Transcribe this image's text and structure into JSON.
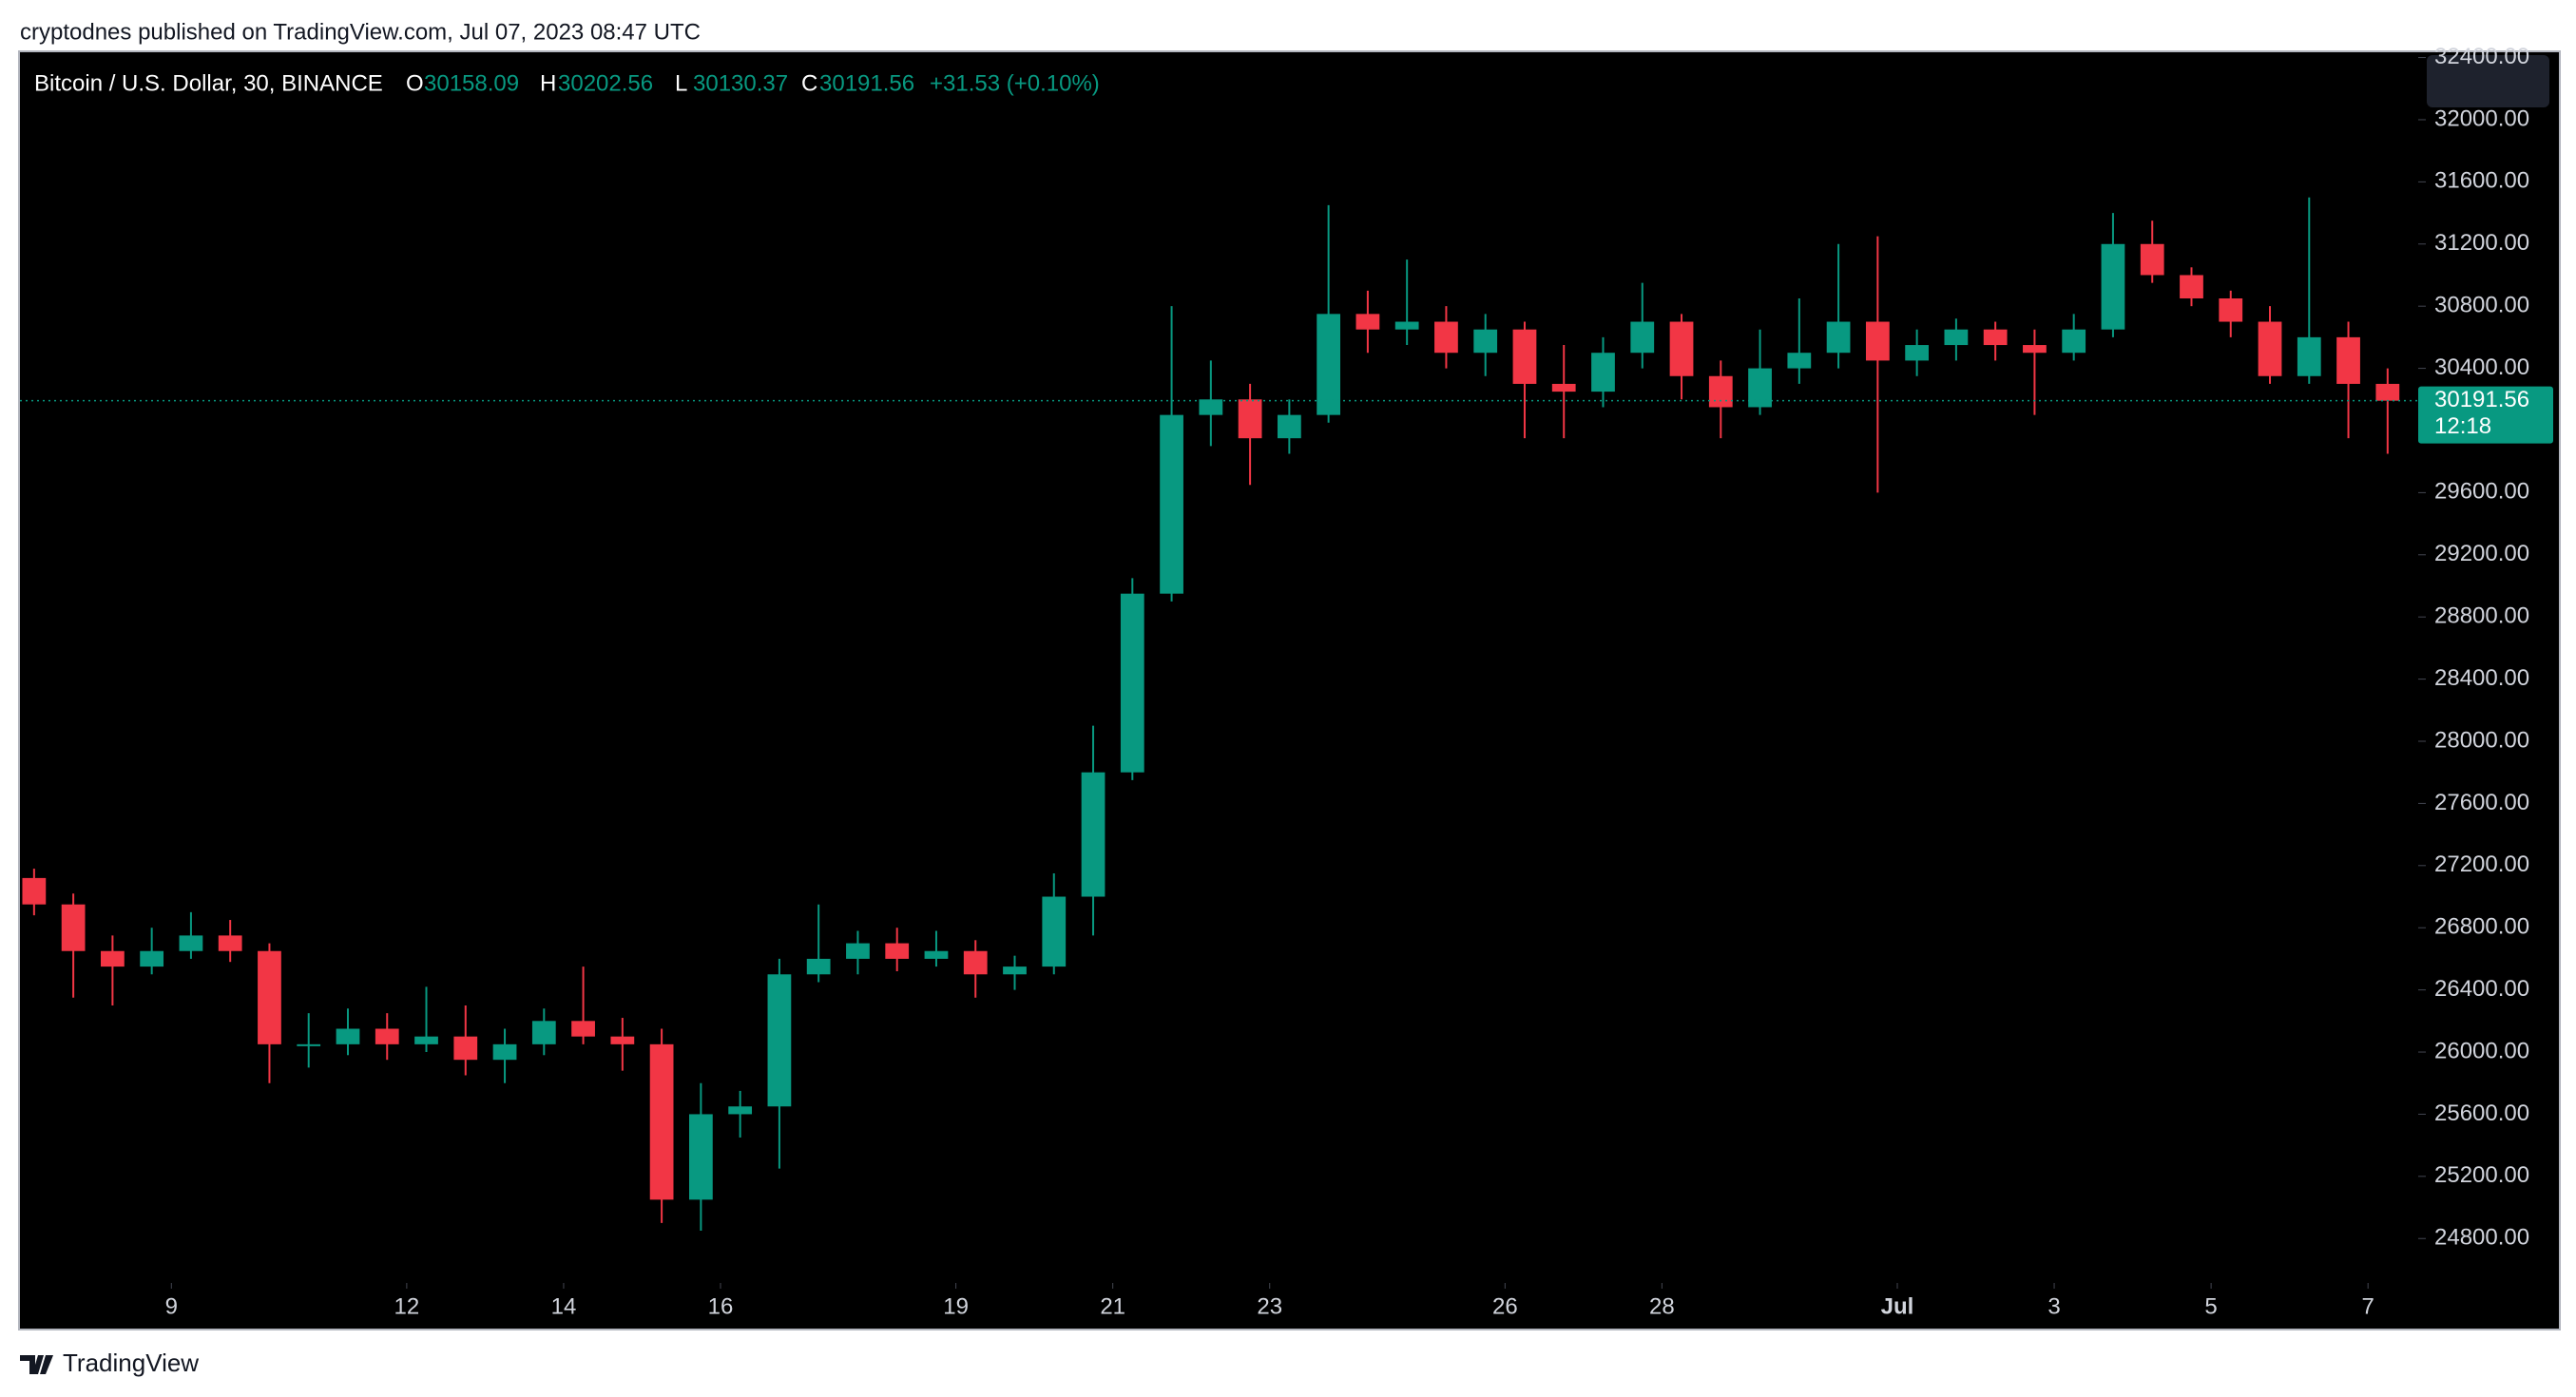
{
  "attribution": "cryptodnes published on TradingView.com, Jul 07, 2023 08:47 UTC",
  "footer": "TradingView",
  "chart_data": {
    "type": "candlestick",
    "symbol": "Bitcoin / U.S. Dollar, 30, BINANCE",
    "ohlc_letters": [
      "O",
      "H",
      "L",
      "C"
    ],
    "last_bar": {
      "open": 30158.09,
      "high": 30202.56,
      "low": 30130.37,
      "close": 30191.56
    },
    "change_label": "+31.53 (+0.10%)",
    "last_price": 30191.56,
    "countdown": "12:18",
    "up_color": "#089981",
    "down_color": "#f23645",
    "x": [
      7.25,
      7.75,
      8.25,
      8.75,
      9.25,
      9.75,
      10.25,
      10.75,
      11.25,
      11.75,
      12.25,
      12.75,
      13.25,
      13.75,
      14.25,
      14.75,
      15.25,
      15.75,
      16.25,
      16.75,
      17.25,
      17.75,
      18.25,
      18.75,
      19.25,
      19.75,
      20.25,
      20.75,
      21.25,
      21.75,
      22.25,
      22.75,
      23.25,
      23.75,
      24.25,
      24.75,
      25.25,
      25.75,
      26.25,
      26.75,
      27.25,
      27.75,
      28.25,
      28.75,
      29.25,
      29.75,
      30.25,
      30.75,
      31.25,
      31.75,
      32.25,
      32.75,
      33.25,
      33.75,
      34.25,
      34.75,
      35.25,
      35.75,
      36.25,
      36.75,
      37.25
    ],
    "open": [
      27120,
      26950,
      26650,
      26550,
      26650,
      26750,
      26650,
      26050,
      26050,
      26150,
      26050,
      26100,
      25950,
      26050,
      26200,
      26100,
      26050,
      25050,
      25600,
      25650,
      26500,
      26600,
      26700,
      26600,
      26650,
      26500,
      26550,
      27000,
      27800,
      28950,
      30100,
      30200,
      29950,
      30100,
      30750,
      30650,
      30700,
      30500,
      30650,
      30300,
      30250,
      30500,
      30700,
      30350,
      30150,
      30400,
      30500,
      30700,
      30450,
      30550,
      30650,
      30550,
      30500,
      30650,
      31200,
      31000,
      30850,
      30700,
      30350,
      30600,
      30300
    ],
    "high": [
      27180,
      27020,
      26750,
      26800,
      26900,
      26850,
      26700,
      26250,
      26280,
      26250,
      26420,
      26300,
      26150,
      26280,
      26550,
      26220,
      26150,
      25800,
      25750,
      26600,
      26950,
      26780,
      26800,
      26780,
      26720,
      26620,
      27150,
      28100,
      29050,
      30800,
      30450,
      30300,
      30200,
      31450,
      30900,
      31100,
      30800,
      30750,
      30700,
      30550,
      30600,
      30950,
      30750,
      30450,
      30650,
      30850,
      31200,
      31250,
      30650,
      30720,
      30700,
      30650,
      30750,
      31400,
      31350,
      31050,
      30900,
      30800,
      31500,
      30700,
      30400
    ],
    "low": [
      26880,
      26350,
      26300,
      26500,
      26600,
      26580,
      25800,
      25900,
      25980,
      25950,
      26000,
      25850,
      25800,
      25980,
      26050,
      25880,
      24900,
      24850,
      25450,
      25250,
      26450,
      26500,
      26520,
      26550,
      26350,
      26400,
      26500,
      26750,
      27750,
      28900,
      29900,
      29650,
      29850,
      30050,
      30500,
      30550,
      30400,
      30350,
      29950,
      29950,
      30150,
      30400,
      30200,
      29950,
      30100,
      30300,
      30400,
      29600,
      30350,
      30450,
      30450,
      30100,
      30450,
      30600,
      30950,
      30800,
      30600,
      30300,
      30300,
      29950,
      29850
    ],
    "close": [
      26950,
      26650,
      26550,
      26650,
      26750,
      26650,
      26050,
      26050,
      26150,
      26050,
      26100,
      25950,
      26050,
      26200,
      26100,
      26050,
      25050,
      25600,
      25650,
      26500,
      26600,
      26700,
      26600,
      26650,
      26500,
      26550,
      27000,
      27800,
      28950,
      30100,
      30200,
      29950,
      30100,
      30750,
      30650,
      30700,
      30500,
      30650,
      30300,
      30250,
      30500,
      30700,
      30350,
      30150,
      30400,
      30500,
      30700,
      30450,
      30550,
      30650,
      30550,
      30500,
      30650,
      31200,
      31000,
      30850,
      30700,
      30350,
      30600,
      30300,
      30191.56
    ],
    "xlim": [
      7.07,
      37.64
    ],
    "xticks": [
      9,
      12,
      14,
      16,
      19,
      21,
      23,
      26,
      28,
      {
        "value": 31,
        "label": "Jul"
      },
      {
        "value": 33,
        "label": "3"
      },
      {
        "value": 35,
        "label": "5"
      },
      {
        "value": 37,
        "label": "7"
      }
    ],
    "ylim": [
      24514,
      32434
    ],
    "yticks": [
      {
        "value": 24800,
        "label": "24800.00"
      },
      {
        "value": 25200,
        "label": "25200.00"
      },
      {
        "value": 25600,
        "label": "25600.00"
      },
      {
        "value": 26000,
        "label": "26000.00"
      },
      {
        "value": 26400,
        "label": "26400.00"
      },
      {
        "value": 26800,
        "label": "26800.00"
      },
      {
        "value": 27200,
        "label": "27200.00"
      },
      {
        "value": 27600,
        "label": "27600.00"
      },
      {
        "value": 28000,
        "label": "28000.00"
      },
      {
        "value": 28400,
        "label": "28400.00"
      },
      {
        "value": 28800,
        "label": "28800.00"
      },
      {
        "value": 29200,
        "label": "29200.00"
      },
      {
        "value": 29600,
        "label": "29600.00"
      },
      {
        "value": 30000,
        "label": "30000.00"
      },
      {
        "value": 30400,
        "label": "30400.00"
      },
      {
        "value": 30800,
        "label": "30800.00"
      },
      {
        "value": 31200,
        "label": "31200.00"
      },
      {
        "value": 31600,
        "label": "31600.00"
      },
      {
        "value": 32000,
        "label": "32000.00"
      },
      {
        "value": 32400,
        "label": "32400.00"
      }
    ]
  }
}
